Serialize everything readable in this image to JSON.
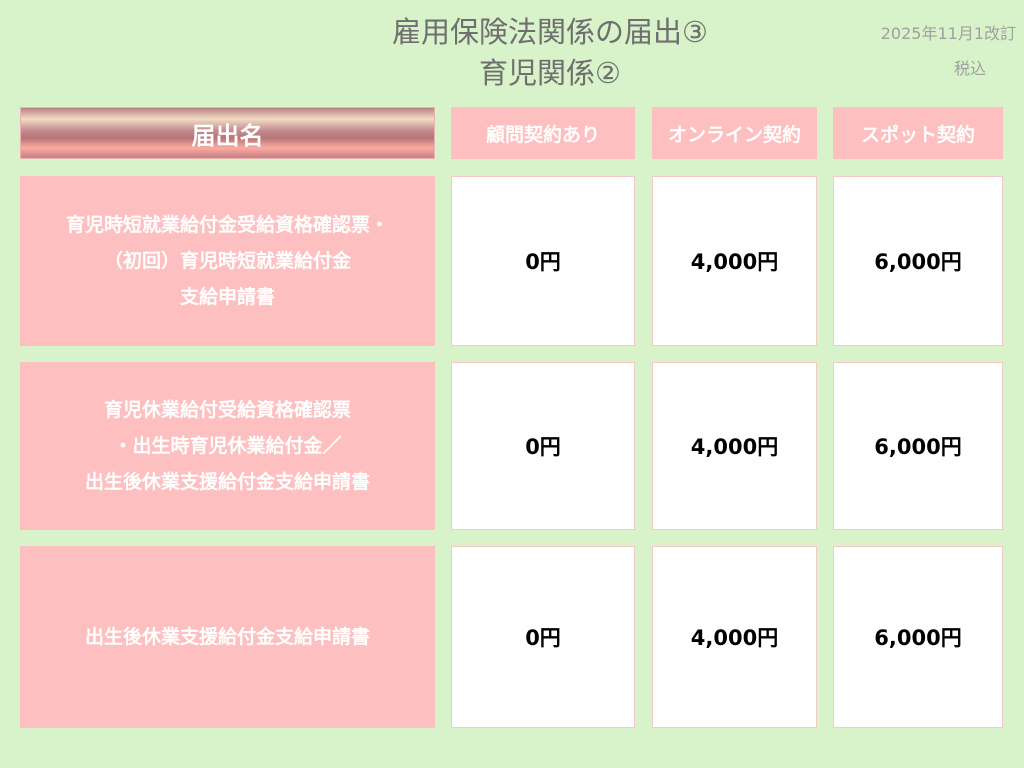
{
  "header": {
    "title_line1": "雇用保険法関係の届出③",
    "title_line2": "育児関係②",
    "revision": "2025年11月1改訂",
    "tax_note": "税込"
  },
  "table": {
    "columns": [
      "届出名",
      "顧問契約あり",
      "オンライン契約",
      "スポット契約"
    ],
    "rows": [
      {
        "name": "育児時短就業給付金受給資格確認票・\n（初回）育児時短就業給付金\n支給申請書",
        "prices": [
          "0円",
          "4,000円",
          "6,000円"
        ]
      },
      {
        "name": "育児休業給付受給資格確認票\n・出生時育児休業給付金／\n出生後休業支援給付金支給申請書",
        "prices": [
          "0円",
          "4,000円",
          "6,000円"
        ]
      },
      {
        "name": "出生後休業支援給付金支給申請書",
        "prices": [
          "0円",
          "4,000円",
          "6,000円"
        ]
      }
    ]
  },
  "colors": {
    "background": "#d8f2ca",
    "header_pink": "#fdbfbf",
    "title_gray": "#6f6f6f"
  }
}
